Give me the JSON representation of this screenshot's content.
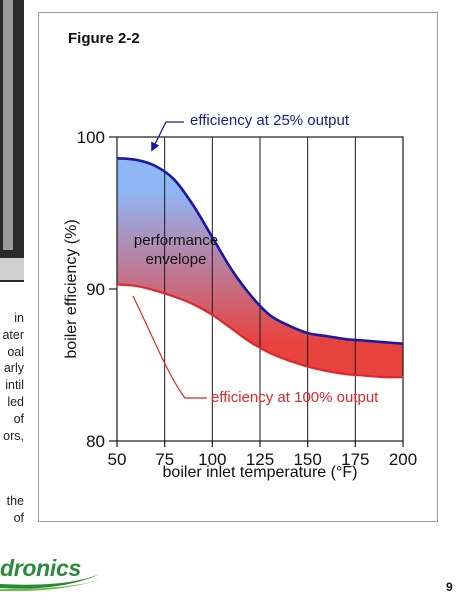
{
  "figure": {
    "title": "Figure 2-2"
  },
  "left_column": {
    "lines_a": [
      "in",
      "ater",
      "oal",
      "arly",
      "intil",
      "led",
      "of",
      "ors,"
    ],
    "lines_b": [
      "the",
      "of"
    ]
  },
  "footer": {
    "logo": "dronics",
    "page_number": "9"
  },
  "colors": {
    "top_curve": "#1a1aa0",
    "bottom_curve": "#e0262a",
    "fill_top": "#8fb6f5",
    "fill_bottom": "#e8423c"
  },
  "chart_data": {
    "type": "area",
    "xlabel": "boiler inlet temperature (°F)",
    "ylabel": "boiler efficiency (%)",
    "xlim": [
      50,
      200
    ],
    "ylim": [
      80,
      100
    ],
    "x_ticks": [
      50,
      75,
      100,
      125,
      150,
      175,
      200
    ],
    "y_ticks": [
      80,
      90,
      100
    ],
    "grid_x": true,
    "series": [
      {
        "name": "efficiency at 25% output",
        "x": [
          50,
          60,
          70,
          80,
          90,
          100,
          110,
          120,
          130,
          140,
          150,
          160,
          170,
          180,
          190,
          200
        ],
        "values": [
          98.6,
          98.5,
          98.1,
          97.2,
          95.5,
          93.4,
          91.3,
          89.6,
          88.3,
          87.6,
          87.1,
          86.9,
          86.7,
          86.6,
          86.5,
          86.4
        ]
      },
      {
        "name": "efficiency at 100% output",
        "x": [
          50,
          60,
          70,
          80,
          90,
          100,
          110,
          120,
          130,
          140,
          150,
          160,
          170,
          180,
          190,
          200
        ],
        "values": [
          90.3,
          90.2,
          89.9,
          89.5,
          89.0,
          88.3,
          87.4,
          86.5,
          85.8,
          85.3,
          84.9,
          84.6,
          84.4,
          84.3,
          84.2,
          84.2
        ]
      }
    ],
    "annotations": {
      "region": [
        "performance",
        "envelope"
      ],
      "top_callout": "efficiency at 25% output",
      "bottom_callout": "efficiency at 100% output"
    }
  }
}
